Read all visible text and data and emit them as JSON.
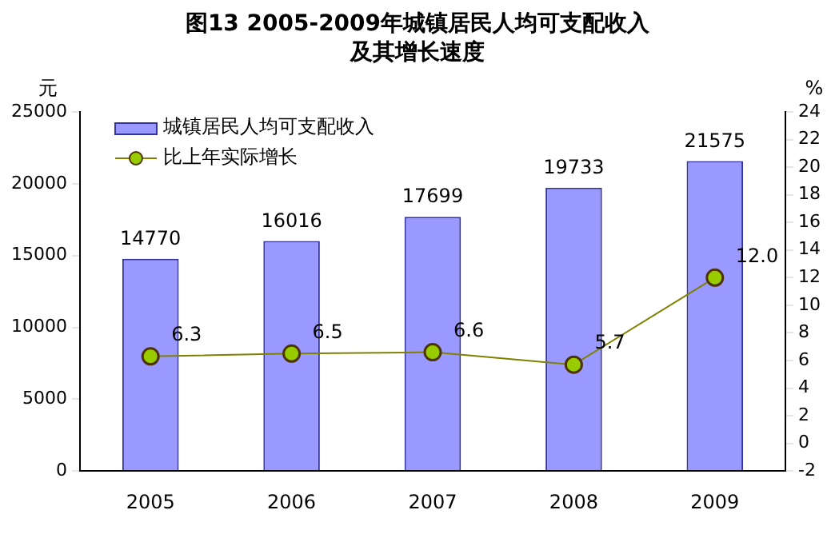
{
  "chart_data": {
    "type": "bar",
    "title": "图13  2005-2009年城镇居民人均可支配收入及其增长速度",
    "ylabel": "元",
    "y2label": "%",
    "categories": [
      "2005",
      "2006",
      "2007",
      "2008",
      "2009"
    ],
    "series": [
      {
        "name": "城镇居民人均可支配收入",
        "color": "#9999ff",
        "values": [
          14770,
          16016,
          17699,
          19733,
          21575
        ]
      },
      {
        "name": "比上年实际增长",
        "type": "line",
        "axis": "y2",
        "color": "#808000",
        "values": [
          6.3,
          6.5,
          6.6,
          5.7,
          12.0
        ],
        "value_labels": [
          "6.3",
          "6.5",
          "6.6",
          "5.7",
          "12.0"
        ]
      }
    ],
    "ylim": [
      0,
      25000
    ],
    "yticks": [
      0,
      5000,
      10000,
      15000,
      20000,
      25000
    ],
    "y2lim": [
      -2,
      24
    ],
    "y2ticks": [
      -2,
      0,
      2,
      4,
      6,
      8,
      10,
      12,
      14,
      16,
      18,
      20,
      22,
      24
    ],
    "data_labels": true,
    "legend": "top left",
    "grid": false,
    "marker": "circle"
  }
}
